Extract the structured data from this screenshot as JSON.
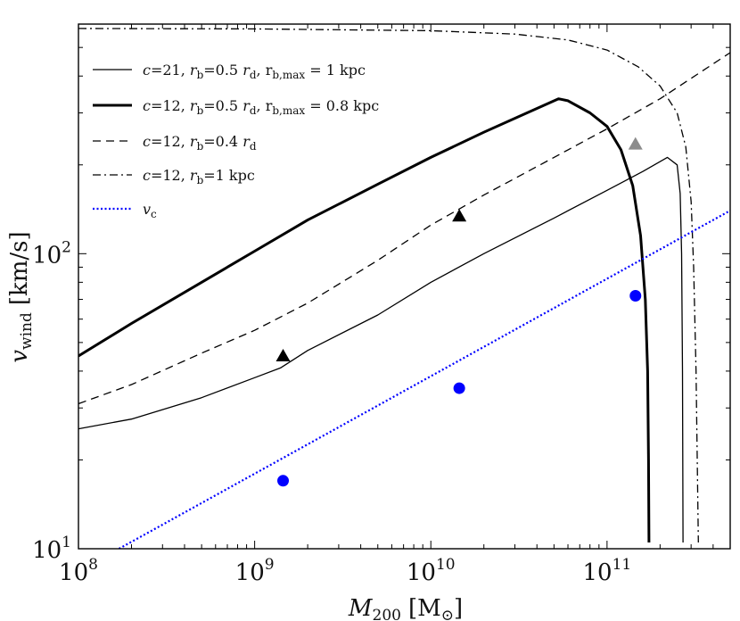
{
  "chart_data": {
    "type": "line",
    "xscale": "log",
    "yscale": "log",
    "xlim": [
      100000000,
      500000000000
    ],
    "ylim": [
      10,
      600
    ],
    "xlabel": "M200 [M⊙]",
    "xlabel_main": "M",
    "xlabel_sub": "200",
    "xlabel_unit": "[M",
    "xlabel_unit_sub": "⊙",
    "xlabel_unit_close": "]",
    "ylabel": "v_wind [km/s]",
    "ylabel_main": "v",
    "ylabel_sub": "wind",
    "ylabel_unit": "[km/s]",
    "x_ticks": [
      {
        "value": 100000000,
        "base": "10",
        "exp": "8"
      },
      {
        "value": 1000000000,
        "base": "10",
        "exp": "9"
      },
      {
        "value": 10000000000,
        "base": "10",
        "exp": "10"
      },
      {
        "value": 100000000000,
        "base": "10",
        "exp": "11"
      }
    ],
    "y_ticks": [
      {
        "value": 10,
        "base": "10",
        "exp": "1"
      },
      {
        "value": 100,
        "base": "10",
        "exp": "2"
      }
    ],
    "legend_position": "top-left",
    "series": [
      {
        "name": "c=21, r_b=0.5 r_d, r_b,max = 1 kpc",
        "legend_parts": [
          "c",
          "=21, ",
          "r",
          "b",
          "=0.5 ",
          "r",
          "d",
          ", r",
          "b,max",
          " = 1 kpc"
        ],
        "color": "#000000",
        "style": "solid",
        "width": "thin",
        "points": [
          [
            100000000,
            25.5
          ],
          [
            200000000,
            27.5
          ],
          [
            500000000,
            32.5
          ],
          [
            1000000000,
            38
          ],
          [
            1400000000,
            41
          ],
          [
            2000000000,
            47
          ],
          [
            5000000000,
            62
          ],
          [
            10000000000,
            80
          ],
          [
            20000000000,
            100
          ],
          [
            50000000000,
            132
          ],
          [
            100000000000,
            164
          ],
          [
            160000000000,
            190
          ],
          [
            220000000000,
            212
          ],
          [
            250000000000,
            200
          ],
          [
            260000000000,
            160
          ],
          [
            265000000000,
            100
          ],
          [
            268000000000,
            40
          ],
          [
            270000000000,
            10.5
          ]
        ]
      },
      {
        "name": "c=12, r_b=0.5 r_d, r_b,max = 0.8 kpc",
        "legend_parts": [
          "c",
          "=12, ",
          "r",
          "b",
          "=0.5 ",
          "r",
          "d",
          ", r",
          "b,max",
          " = 0.8 kpc"
        ],
        "color": "#000000",
        "style": "solid",
        "width": "thick",
        "points": [
          [
            100000000,
            45
          ],
          [
            200000000,
            58
          ],
          [
            500000000,
            80
          ],
          [
            1000000000,
            102
          ],
          [
            2000000000,
            130
          ],
          [
            5000000000,
            172
          ],
          [
            10000000000,
            212
          ],
          [
            20000000000,
            258
          ],
          [
            53000000000,
            335
          ],
          [
            60000000000,
            330
          ],
          [
            80000000000,
            300
          ],
          [
            100000000000,
            270
          ],
          [
            120000000000,
            225
          ],
          [
            140000000000,
            170
          ],
          [
            155000000000,
            115
          ],
          [
            165000000000,
            70
          ],
          [
            170000000000,
            40
          ],
          [
            172000000000,
            20
          ],
          [
            173000000000,
            10.5
          ]
        ]
      },
      {
        "name": "c=12, r_b=0.4 r_d",
        "legend_parts": [
          "c",
          "=12, ",
          "r",
          "b",
          "=0.4 ",
          "r",
          "d"
        ],
        "color": "#000000",
        "style": "dashed",
        "width": "thin",
        "points": [
          [
            100000000,
            31
          ],
          [
            200000000,
            36
          ],
          [
            500000000,
            46
          ],
          [
            1000000000,
            55
          ],
          [
            2000000000,
            68
          ],
          [
            5000000000,
            95
          ],
          [
            10000000000,
            125
          ],
          [
            20000000000,
            158
          ],
          [
            50000000000,
            212
          ],
          [
            100000000000,
            265
          ],
          [
            200000000000,
            335
          ],
          [
            500000000000,
            480
          ]
        ]
      },
      {
        "name": "c=12, r_b=1 kpc",
        "legend_parts": [
          "c",
          "=12, ",
          "r",
          "b",
          "=1 kpc"
        ],
        "color": "#000000",
        "style": "dashdot",
        "width": "thin",
        "points": [
          [
            100000000,
            580
          ],
          [
            1000000000,
            578
          ],
          [
            10000000000,
            570
          ],
          [
            30000000000,
            555
          ],
          [
            60000000000,
            530
          ],
          [
            100000000000,
            490
          ],
          [
            150000000000,
            430
          ],
          [
            200000000000,
            370
          ],
          [
            250000000000,
            300
          ],
          [
            280000000000,
            230
          ],
          [
            300000000000,
            150
          ],
          [
            310000000000,
            90
          ],
          [
            320000000000,
            40
          ],
          [
            330000000000,
            10.5
          ]
        ]
      },
      {
        "name": "v_c",
        "legend_parts": [
          "v",
          "c"
        ],
        "color": "#0000ff",
        "style": "dotted",
        "width": "thin",
        "points": [
          [
            170000000,
            10
          ],
          [
            500000000000,
            140
          ]
        ]
      }
    ],
    "markers": [
      {
        "series": "triangles_black",
        "shape": "triangle",
        "color": "#000000",
        "x": 1450000000,
        "y": 45
      },
      {
        "series": "triangles_black",
        "shape": "triangle",
        "color": "#000000",
        "x": 14500000000,
        "y": 134
      },
      {
        "series": "triangles_gray",
        "shape": "triangle",
        "color": "#8c8c8c",
        "x": 145000000000,
        "y": 235
      },
      {
        "series": "circles_blue",
        "shape": "circle",
        "color": "#0000ff",
        "x": 1450000000,
        "y": 17
      },
      {
        "series": "circles_blue",
        "shape": "circle",
        "color": "#0000ff",
        "x": 14500000000,
        "y": 35
      },
      {
        "series": "circles_blue",
        "shape": "circle",
        "color": "#0000ff",
        "x": 145000000000,
        "y": 72
      }
    ]
  }
}
